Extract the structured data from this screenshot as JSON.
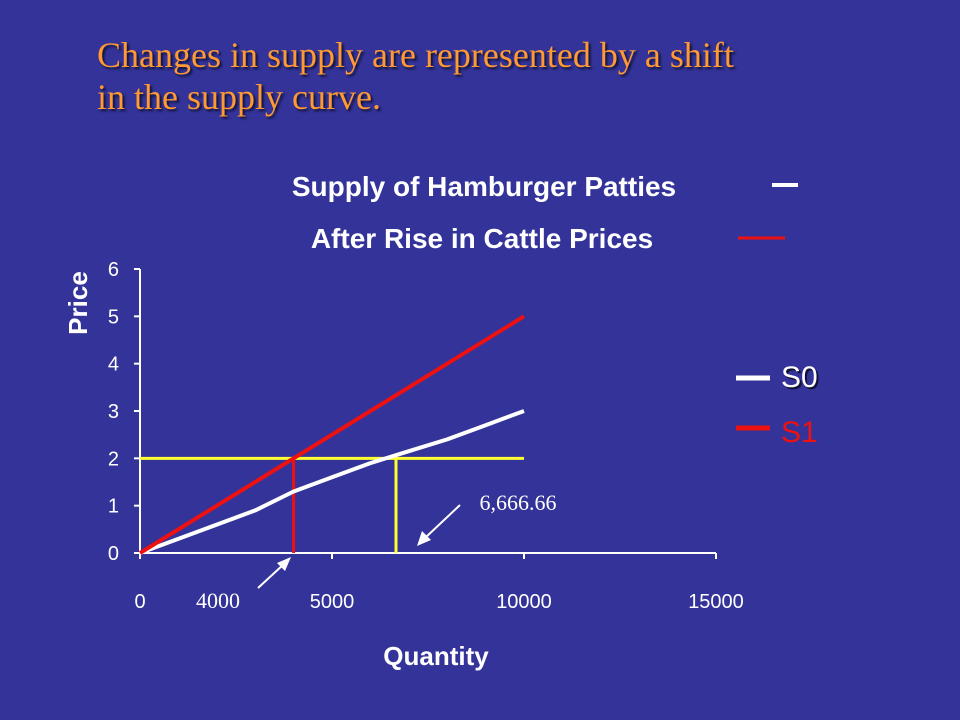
{
  "slide": {
    "title_line1": "Changes in supply  are represented by a shift",
    "title_line2": "in the supply curve."
  },
  "colors": {
    "background": "#333399",
    "title": "#ff9933",
    "s0": "#ffffff",
    "s1": "#ee1111",
    "guide": "#ffff33"
  },
  "chart_data": {
    "type": "line",
    "title_lines": [
      "Supply of Hamburger Patties",
      "After Rise in Cattle Prices"
    ],
    "xlabel": "Quantity",
    "ylabel": "Price",
    "xlim": [
      0,
      15000
    ],
    "ylim": [
      0,
      6
    ],
    "xticks": [
      0,
      5000,
      10000,
      15000
    ],
    "yticks": [
      0,
      1,
      2,
      3,
      4,
      5,
      6
    ],
    "grid": false,
    "legend_position": "right",
    "series": [
      {
        "name": "S0",
        "color": "#ffffff",
        "points": [
          [
            0,
            0
          ],
          [
            2000,
            0.6
          ],
          [
            3000,
            0.9
          ],
          [
            4000,
            1.3
          ],
          [
            5000,
            1.6
          ],
          [
            6000,
            1.9
          ],
          [
            7000,
            2.15
          ],
          [
            8000,
            2.4
          ],
          [
            9000,
            2.7
          ],
          [
            10000,
            3.0
          ]
        ]
      },
      {
        "name": "S1",
        "color": "#ee1111",
        "points": [
          [
            0,
            0
          ],
          [
            2000,
            1.0
          ],
          [
            4000,
            2.0
          ],
          [
            6000,
            3.0
          ],
          [
            8000,
            4.0
          ],
          [
            10000,
            5.0
          ]
        ]
      }
    ],
    "guides": {
      "price_level": 2,
      "quantities": [
        4000,
        6666.66
      ]
    },
    "annotations": [
      {
        "text": "4000",
        "x": 4000,
        "y": 0,
        "color": "#ffffff"
      },
      {
        "text": "6,666.66",
        "x": 6666.66,
        "y": 0,
        "color": "#ffffff"
      }
    ]
  }
}
